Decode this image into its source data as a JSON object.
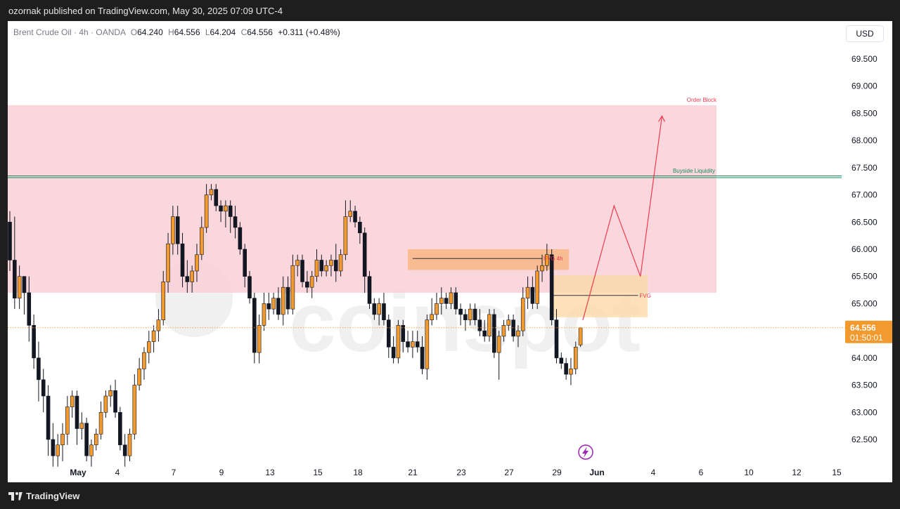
{
  "header": {
    "published": "ozornak published on TradingView.com, May 30, 2025 07:09 UTC-4"
  },
  "legend": {
    "symbol": "Brent Crude Oil · 4h · OANDA",
    "o_label": "O",
    "o": "64.240",
    "h_label": "H",
    "h": "64.556",
    "l_label": "L",
    "l": "64.204",
    "c_label": "C",
    "c": "64.556",
    "change": "+0.311 (+0.48%)"
  },
  "currency": "USD",
  "price_tag": {
    "price": "64.556",
    "countdown": "01:50:01"
  },
  "footer": {
    "brand": "TradingView"
  },
  "watermark": "coinspot",
  "colors": {
    "up": "#f29a2e",
    "down": "#131722",
    "order_block": "#f9d0d6",
    "fvg": "#f8b27a",
    "liquidity_line": "#1b8a5a",
    "projection": "#ef3a4f"
  },
  "chart_data": {
    "type": "candlestick",
    "ylim": [
      62.1,
      70.0
    ],
    "yticks": [
      "69.500",
      "69.000",
      "68.500",
      "68.000",
      "67.500",
      "67.000",
      "66.500",
      "66.000",
      "65.500",
      "65.000",
      "64.500",
      "64.000",
      "63.500",
      "63.000",
      "62.500"
    ],
    "xticks": [
      "May",
      "4",
      "7",
      "9",
      "13",
      "15",
      "18",
      "21",
      "23",
      "27",
      "29",
      "Jun",
      "4",
      "6",
      "10",
      "12",
      "15"
    ],
    "candles": [
      [
        66.5,
        66.7,
        65.6,
        65.8
      ],
      [
        65.8,
        66.6,
        64.9,
        65.1
      ],
      [
        65.1,
        65.7,
        64.9,
        65.5
      ],
      [
        65.5,
        65.5,
        64.8,
        65.2
      ],
      [
        65.2,
        65.5,
        64.3,
        64.6
      ],
      [
        64.6,
        64.8,
        63.8,
        64.0
      ],
      [
        64.0,
        64.3,
        63.2,
        63.6
      ],
      [
        63.6,
        63.8,
        63.0,
        63.3
      ],
      [
        63.3,
        63.5,
        62.2,
        62.5
      ],
      [
        62.5,
        62.8,
        62.0,
        62.2
      ],
      [
        62.2,
        62.6,
        62.0,
        62.4
      ],
      [
        62.4,
        62.8,
        62.1,
        62.6
      ],
      [
        62.6,
        63.3,
        62.4,
        63.1
      ],
      [
        63.1,
        63.4,
        62.9,
        63.3
      ],
      [
        63.3,
        63.4,
        62.4,
        62.7
      ],
      [
        62.7,
        63.0,
        62.5,
        62.8
      ],
      [
        62.8,
        62.9,
        62.1,
        62.2
      ],
      [
        62.2,
        62.5,
        62.0,
        62.4
      ],
      [
        62.4,
        62.7,
        62.3,
        62.6
      ],
      [
        62.6,
        63.2,
        62.5,
        63.0
      ],
      [
        63.0,
        63.4,
        62.9,
        63.3
      ],
      [
        63.3,
        63.5,
        63.1,
        63.4
      ],
      [
        63.4,
        63.6,
        62.9,
        63.0
      ],
      [
        63.0,
        63.1,
        62.3,
        62.4
      ],
      [
        62.4,
        62.6,
        62.0,
        62.2
      ],
      [
        62.2,
        62.7,
        62.1,
        62.6
      ],
      [
        62.6,
        63.7,
        62.5,
        63.5
      ],
      [
        63.5,
        64.0,
        63.4,
        63.8
      ],
      [
        63.8,
        64.2,
        63.6,
        64.1
      ],
      [
        64.1,
        64.5,
        63.9,
        64.3
      ],
      [
        64.3,
        64.6,
        64.1,
        64.5
      ],
      [
        64.5,
        64.9,
        64.3,
        64.7
      ],
      [
        64.7,
        65.6,
        64.6,
        65.4
      ],
      [
        65.4,
        66.3,
        65.2,
        66.1
      ],
      [
        66.1,
        66.8,
        65.9,
        66.6
      ],
      [
        66.6,
        66.8,
        65.9,
        66.1
      ],
      [
        66.1,
        66.3,
        65.3,
        65.5
      ],
      [
        65.5,
        65.8,
        65.2,
        65.4
      ],
      [
        65.4,
        65.7,
        65.2,
        65.6
      ],
      [
        65.6,
        66.1,
        65.4,
        65.9
      ],
      [
        65.9,
        66.6,
        65.8,
        66.4
      ],
      [
        66.4,
        67.2,
        66.3,
        67.0
      ],
      [
        67.0,
        67.2,
        66.9,
        67.1
      ],
      [
        67.1,
        67.2,
        66.7,
        66.8
      ],
      [
        66.8,
        66.9,
        66.5,
        66.7
      ],
      [
        66.7,
        66.9,
        66.4,
        66.8
      ],
      [
        66.8,
        66.9,
        66.3,
        66.6
      ],
      [
        66.6,
        66.8,
        66.2,
        66.4
      ],
      [
        66.4,
        66.5,
        65.9,
        66.0
      ],
      [
        66.0,
        66.1,
        65.3,
        65.5
      ],
      [
        65.5,
        65.6,
        65.0,
        65.1
      ],
      [
        65.1,
        65.2,
        63.9,
        64.1
      ],
      [
        64.1,
        64.8,
        63.9,
        64.6
      ],
      [
        64.6,
        65.2,
        64.5,
        65.0
      ],
      [
        65.0,
        65.2,
        64.7,
        64.9
      ],
      [
        64.9,
        65.2,
        64.8,
        65.1
      ],
      [
        65.1,
        65.3,
        64.7,
        64.8
      ],
      [
        64.8,
        65.5,
        64.6,
        65.3
      ],
      [
        65.3,
        65.5,
        64.8,
        64.9
      ],
      [
        64.9,
        65.9,
        64.8,
        65.7
      ],
      [
        65.7,
        65.9,
        65.5,
        65.8
      ],
      [
        65.8,
        65.9,
        65.3,
        65.4
      ],
      [
        65.4,
        65.6,
        65.2,
        65.3
      ],
      [
        65.3,
        65.6,
        65.1,
        65.5
      ],
      [
        65.5,
        66.0,
        65.4,
        65.8
      ],
      [
        65.8,
        65.9,
        65.5,
        65.6
      ],
      [
        65.6,
        65.8,
        65.5,
        65.7
      ],
      [
        65.7,
        65.9,
        65.5,
        65.8
      ],
      [
        65.8,
        66.1,
        65.4,
        65.6
      ],
      [
        65.6,
        66.0,
        65.5,
        65.9
      ],
      [
        65.9,
        66.9,
        65.8,
        66.6
      ],
      [
        66.6,
        66.9,
        66.5,
        66.7
      ],
      [
        66.7,
        66.8,
        66.4,
        66.5
      ],
      [
        66.5,
        66.6,
        66.1,
        66.3
      ],
      [
        66.3,
        66.4,
        65.2,
        65.5
      ],
      [
        65.5,
        65.6,
        64.9,
        65.0
      ],
      [
        65.0,
        65.1,
        64.7,
        64.8
      ],
      [
        64.8,
        65.1,
        64.6,
        65.0
      ],
      [
        65.0,
        65.2,
        64.6,
        64.7
      ],
      [
        64.7,
        64.8,
        64.0,
        64.2
      ],
      [
        64.2,
        64.4,
        63.9,
        64.0
      ],
      [
        64.0,
        64.7,
        63.9,
        64.6
      ],
      [
        64.6,
        64.7,
        64.1,
        64.3
      ],
      [
        64.3,
        64.5,
        64.1,
        64.2
      ],
      [
        64.2,
        64.5,
        64.0,
        64.3
      ],
      [
        64.3,
        64.5,
        64.1,
        64.2
      ],
      [
        64.2,
        64.4,
        63.7,
        63.8
      ],
      [
        63.8,
        64.8,
        63.6,
        64.7
      ],
      [
        64.7,
        65.1,
        64.6,
        64.8
      ],
      [
        64.8,
        65.2,
        64.7,
        65.0
      ],
      [
        65.0,
        65.3,
        64.8,
        65.1
      ],
      [
        65.1,
        65.2,
        64.9,
        65.0
      ],
      [
        65.0,
        65.3,
        64.9,
        65.2
      ],
      [
        65.2,
        65.3,
        64.8,
        64.9
      ],
      [
        64.9,
        65.0,
        64.6,
        64.8
      ],
      [
        64.8,
        64.9,
        64.5,
        64.7
      ],
      [
        64.7,
        65.0,
        64.6,
        64.9
      ],
      [
        64.9,
        65.0,
        64.6,
        64.7
      ],
      [
        64.7,
        64.9,
        64.4,
        64.5
      ],
      [
        64.5,
        64.7,
        64.3,
        64.4
      ],
      [
        64.4,
        64.9,
        64.3,
        64.8
      ],
      [
        64.8,
        64.9,
        64.0,
        64.1
      ],
      [
        64.1,
        64.5,
        63.6,
        64.4
      ],
      [
        64.4,
        64.7,
        64.3,
        64.6
      ],
      [
        64.6,
        64.8,
        64.5,
        64.7
      ],
      [
        64.7,
        64.8,
        64.3,
        64.4
      ],
      [
        64.4,
        64.6,
        64.2,
        64.5
      ],
      [
        64.5,
        65.3,
        64.4,
        65.1
      ],
      [
        65.1,
        65.5,
        64.9,
        65.3
      ],
      [
        65.3,
        65.5,
        64.9,
        65.0
      ],
      [
        65.0,
        65.7,
        64.9,
        65.6
      ],
      [
        65.6,
        65.9,
        65.4,
        65.7
      ],
      [
        65.7,
        66.1,
        65.6,
        65.9
      ],
      [
        65.9,
        66.0,
        64.6,
        64.7
      ],
      [
        64.7,
        64.9,
        63.9,
        64.0
      ],
      [
        64.0,
        64.1,
        63.8,
        63.9
      ],
      [
        63.9,
        64.0,
        63.6,
        63.7
      ],
      [
        63.7,
        64.0,
        63.5,
        63.8
      ],
      [
        63.8,
        64.3,
        63.7,
        64.2
      ],
      [
        64.24,
        64.556,
        64.204,
        64.556
      ]
    ],
    "zones": [
      {
        "name": "Order Block",
        "label": "Order Block",
        "y1": 65.2,
        "y2": 68.65
      },
      {
        "name": "FVG (upper)",
        "label": "FVG 4h",
        "y1": 65.62,
        "y2": 66.0
      },
      {
        "name": "FVG (lower)",
        "label": "FVG",
        "y1": 64.75,
        "y2": 65.52
      }
    ],
    "annotations": [
      {
        "label": "Buyside Liquidity",
        "price": 67.33
      },
      {
        "label": "FVG 4h",
        "price": 65.83
      },
      {
        "label": "FVG",
        "price": 65.15
      }
    ],
    "projection": [
      {
        "idx": 119.5,
        "price": 64.7
      },
      {
        "idx": 126.0,
        "price": 66.8
      },
      {
        "idx": 131.5,
        "price": 65.5
      },
      {
        "idx": 136.0,
        "price": 68.45
      }
    ],
    "current_price": 64.556
  }
}
